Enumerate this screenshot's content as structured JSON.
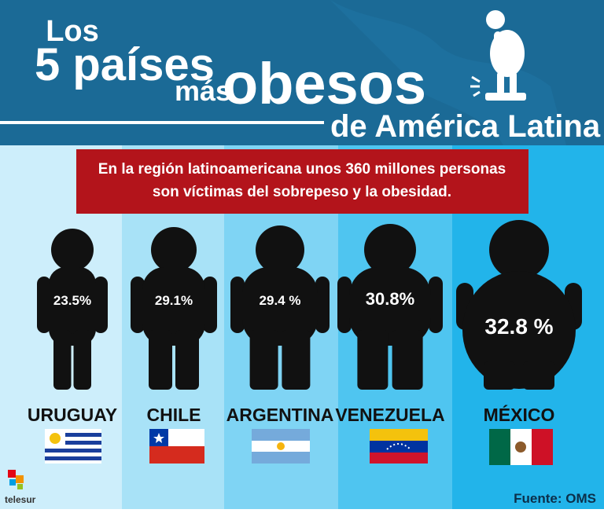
{
  "header": {
    "line1": "Los",
    "line2": "5 países",
    "line3": "más",
    "line4": "obesos",
    "line5": "de América Latina"
  },
  "banner": {
    "line1": "En la región latinoamericana unos 360 millones personas",
    "line2": "son víctimas del sobrepeso y la obesidad."
  },
  "countries": [
    {
      "name": "URUGUAY",
      "value": "23.5%"
    },
    {
      "name": "CHILE",
      "value": "29.1%"
    },
    {
      "name": "ARGENTINA",
      "value": "29.4 %"
    },
    {
      "name": "VENEZUELA",
      "value": "30.8%"
    },
    {
      "name": "MÉXICO",
      "value": "32.8 %"
    }
  ],
  "source": "Fuente: OMS",
  "logo": "telesur"
}
